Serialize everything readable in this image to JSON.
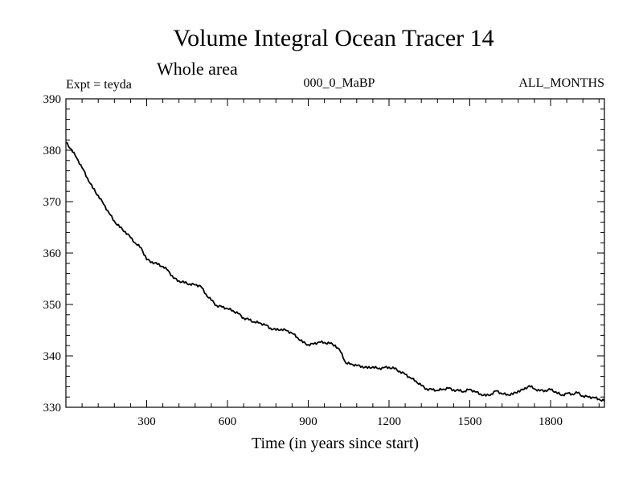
{
  "chart_data": {
    "type": "line",
    "title": "Volume Integral Ocean Tracer 14",
    "subtitle": "Whole area",
    "annotations": {
      "left": "Expt = teyda",
      "center": "000_0_MaBP",
      "right": "ALL_MONTHS"
    },
    "xlabel": "Time (in years since start)",
    "ylabel": "",
    "xlim": [
      0,
      2000
    ],
    "ylim": [
      330,
      390
    ],
    "xticks": [
      300,
      600,
      900,
      1200,
      1500,
      1800
    ],
    "yticks": [
      330,
      340,
      350,
      360,
      370,
      380,
      390
    ],
    "grid": false,
    "series": [
      {
        "name": "Tracer 14",
        "color": "#000000",
        "x": [
          0,
          20,
          40,
          60,
          80,
          100,
          120,
          140,
          160,
          180,
          200,
          220,
          240,
          260,
          280,
          300,
          320,
          340,
          360,
          380,
          400,
          420,
          440,
          460,
          480,
          500,
          520,
          540,
          560,
          580,
          600,
          620,
          640,
          660,
          680,
          700,
          720,
          740,
          760,
          780,
          800,
          820,
          840,
          860,
          880,
          900,
          920,
          940,
          960,
          980,
          1000,
          1020,
          1040,
          1060,
          1080,
          1100,
          1120,
          1140,
          1160,
          1180,
          1200,
          1220,
          1240,
          1260,
          1280,
          1300,
          1320,
          1340,
          1360,
          1380,
          1400,
          1420,
          1440,
          1460,
          1480,
          1500,
          1520,
          1540,
          1560,
          1580,
          1600,
          1620,
          1640,
          1660,
          1680,
          1700,
          1720,
          1740,
          1760,
          1780,
          1800,
          1820,
          1840,
          1860,
          1880,
          1900,
          1920,
          1940,
          1960,
          1980,
          2000
        ],
        "y": [
          381.5,
          380.2,
          378.5,
          376.6,
          374.6,
          372.6,
          371.2,
          369.5,
          367.8,
          366.2,
          365.0,
          364.2,
          363.0,
          361.8,
          361.0,
          358.7,
          358.3,
          357.8,
          357.4,
          356.6,
          355.1,
          354.6,
          354.2,
          354.0,
          353.8,
          353.6,
          352.0,
          350.8,
          349.8,
          349.5,
          349.2,
          348.8,
          348.2,
          347.4,
          347.0,
          346.6,
          346.4,
          346.0,
          345.4,
          345.0,
          345.2,
          344.9,
          344.4,
          343.6,
          342.6,
          342.2,
          342.3,
          342.7,
          342.6,
          342.4,
          342.1,
          340.8,
          338.6,
          338.4,
          338.1,
          338.0,
          337.6,
          337.9,
          337.5,
          337.7,
          337.8,
          337.5,
          337.0,
          336.4,
          335.7,
          335.1,
          334.2,
          333.6,
          333.4,
          333.3,
          333.5,
          333.7,
          333.4,
          333.2,
          333.1,
          333.5,
          333.0,
          332.6,
          332.2,
          332.6,
          333.2,
          332.6,
          332.5,
          332.5,
          333.2,
          333.4,
          334.2,
          333.6,
          333.2,
          333.3,
          333.4,
          333.0,
          332.3,
          332.7,
          332.6,
          332.8,
          332.2,
          332.0,
          331.9,
          331.6,
          331.2
        ]
      }
    ]
  }
}
